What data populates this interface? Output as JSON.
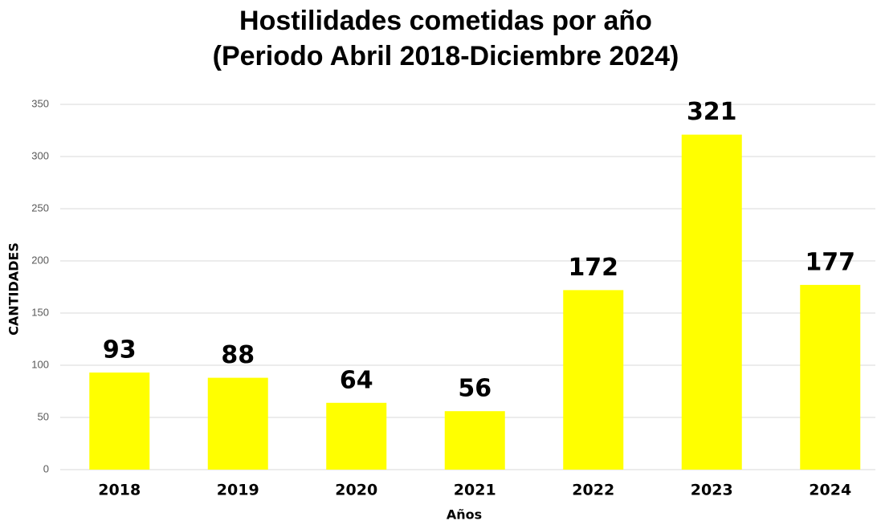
{
  "chart_data": {
    "type": "bar",
    "title": [
      "Hostilidades cometidas por año",
      "(Periodo Abril 2018-Diciembre 2024)"
    ],
    "x_label": "Años",
    "y_label": "CANTIDADES",
    "categories": [
      "2018",
      "2019",
      "2020",
      "2021",
      "2022",
      "2023",
      "2024"
    ],
    "values": [
      93,
      88,
      64,
      56,
      172,
      321,
      177
    ],
    "color": "#ffff00",
    "ylim": [
      0,
      350
    ],
    "yticks": [
      0,
      50,
      100,
      150,
      200,
      250,
      300,
      350
    ],
    "grid": true
  }
}
